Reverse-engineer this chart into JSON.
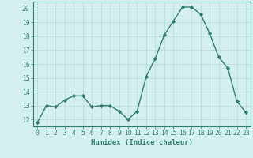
{
  "x": [
    0,
    1,
    2,
    3,
    4,
    5,
    6,
    7,
    8,
    9,
    10,
    11,
    12,
    13,
    14,
    15,
    16,
    17,
    18,
    19,
    20,
    21,
    22,
    23
  ],
  "y": [
    11.8,
    13.0,
    12.9,
    13.4,
    13.7,
    13.7,
    12.9,
    13.0,
    13.0,
    12.6,
    12.0,
    12.6,
    15.1,
    16.4,
    18.1,
    19.1,
    20.1,
    20.1,
    19.6,
    18.2,
    16.5,
    15.7,
    13.3,
    12.5
  ],
  "line_color": "#2e7d6e",
  "marker": "D",
  "markersize": 2.2,
  "linewidth": 1.0,
  "xlim": [
    -0.5,
    23.5
  ],
  "ylim": [
    11.5,
    20.5
  ],
  "yticks": [
    12,
    13,
    14,
    15,
    16,
    17,
    18,
    19,
    20
  ],
  "xticks": [
    0,
    1,
    2,
    3,
    4,
    5,
    6,
    7,
    8,
    9,
    10,
    11,
    12,
    13,
    14,
    15,
    16,
    17,
    18,
    19,
    20,
    21,
    22,
    23
  ],
  "xlabel": "Humidex (Indice chaleur)",
  "xlabel_fontsize": 6.5,
  "tick_fontsize": 5.8,
  "bg_color": "#d4efef",
  "grid_color": "#b8d8d8",
  "spine_color": "#2e7d6e"
}
